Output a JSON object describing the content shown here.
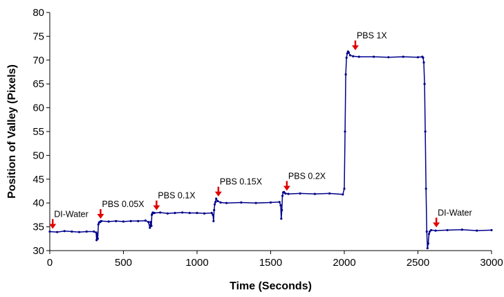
{
  "chart_data": {
    "type": "line",
    "title": "",
    "xlabel": "Time (Seconds)",
    "ylabel": "Position of Valley (Pixels)",
    "xlim": [
      0,
      3000
    ],
    "ylim": [
      30,
      80
    ],
    "xticks": [
      0,
      500,
      1000,
      1500,
      2000,
      2500,
      3000
    ],
    "yticks": [
      30,
      35,
      40,
      45,
      50,
      55,
      60,
      65,
      70,
      75,
      80
    ],
    "grid": false,
    "legend": "none",
    "series_color": "#00008B",
    "arrow_color": "#E00000",
    "series": [
      {
        "x": [
          0,
          50,
          100,
          150,
          200,
          250,
          300,
          315,
          318,
          322,
          326,
          330,
          335,
          340,
          345,
          350,
          400,
          450,
          500,
          550,
          600,
          650,
          670,
          680,
          685,
          690,
          693,
          697,
          700,
          710,
          750,
          800,
          850,
          900,
          950,
          1000,
          1050,
          1100,
          1108,
          1112,
          1116,
          1120,
          1125,
          1130,
          1140,
          1160,
          1200,
          1300,
          1400,
          1500,
          1560,
          1568,
          1572,
          1576,
          1580,
          1585,
          1590,
          1600,
          1620,
          1700,
          1800,
          1900,
          1990,
          2000,
          2005,
          2010,
          2015,
          2020,
          2025,
          2030,
          2040,
          2060,
          2100,
          2200,
          2300,
          2400,
          2500,
          2530,
          2535,
          2540,
          2545,
          2550,
          2555,
          2560,
          2565,
          2570,
          2575,
          2580,
          2590,
          2620,
          2700,
          2800,
          2900,
          3000
        ],
        "y": [
          34,
          33.9,
          34.1,
          34,
          33.9,
          34,
          34,
          33.8,
          32.2,
          33.5,
          32.5,
          35.5,
          35.9,
          36,
          36.1,
          36.2,
          36.1,
          36.2,
          36.1,
          36.2,
          36.2,
          36.3,
          36,
          34.8,
          36,
          35.2,
          37.5,
          37.8,
          38,
          37.9,
          38,
          37.8,
          37.9,
          38,
          37.9,
          37.9,
          37.8,
          37.9,
          37.5,
          36.2,
          38.5,
          39.7,
          40.2,
          40.9,
          40.4,
          40.1,
          40,
          40.1,
          40,
          40.1,
          40.2,
          39.5,
          36.7,
          38.5,
          41.5,
          42.2,
          42.3,
          42,
          41.9,
          42,
          41.9,
          42,
          41.8,
          43,
          55,
          67,
          70.5,
          71.4,
          71.8,
          71.6,
          71,
          70.8,
          70.7,
          70.7,
          70.6,
          70.7,
          70.6,
          70.7,
          70.5,
          69.5,
          65,
          55,
          43,
          34,
          30.5,
          31.5,
          33.5,
          34,
          34.3,
          34.2,
          34.3,
          34.4,
          34.2,
          34.3
        ]
      }
    ],
    "annotations": [
      {
        "text": "DI-Water",
        "x": 20,
        "y": 34
      },
      {
        "text": "PBS 0.05X",
        "x": 345,
        "y": 36.1
      },
      {
        "text": "PBS 0.1X",
        "x": 725,
        "y": 37.9
      },
      {
        "text": "PBS 0.15X",
        "x": 1145,
        "y": 40.8
      },
      {
        "text": "PBS 0.2X",
        "x": 1610,
        "y": 42
      },
      {
        "text": "PBS 1X",
        "x": 2075,
        "y": 71.5
      },
      {
        "text": "DI-Water",
        "x": 2625,
        "y": 34.3
      }
    ]
  }
}
